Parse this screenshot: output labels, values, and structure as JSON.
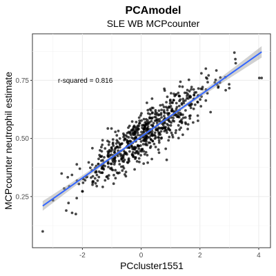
{
  "chart_data": {
    "type": "scatter",
    "title": "PCAmodel",
    "subtitle": "SLE WB MCPcounter",
    "xlabel": "PCcluster1551",
    "ylabel": "MCPcounter neutrophil estimate",
    "xlim": [
      -3.7,
      4.4
    ],
    "ylim": [
      0.03,
      0.95
    ],
    "x_ticks": [
      -2,
      0,
      2,
      4
    ],
    "x_tick_labels": [
      "-2",
      "0",
      "2",
      "4"
    ],
    "y_ticks": [
      0.25,
      0.5,
      0.75
    ],
    "y_tick_labels": [
      "0.25",
      "0.50",
      "0.75"
    ],
    "grid": true,
    "annotation": {
      "text": "r-squared = 0.816",
      "x": -1.9,
      "y": 0.75
    },
    "regression": {
      "slope": 0.0889,
      "intercept": 0.5077,
      "x_range": [
        -3.35,
        4.1
      ]
    },
    "point_count": 700,
    "highlight_points": [
      {
        "x": -3.35,
        "y": 0.1
      },
      {
        "x": 4.1,
        "y": 0.76
      },
      {
        "x": 4.02,
        "y": 0.76
      },
      {
        "x": -2.55,
        "y": 0.19
      },
      {
        "x": -2.35,
        "y": 0.18
      },
      {
        "x": 1.2,
        "y": 0.69
      },
      {
        "x": 2.2,
        "y": 0.8
      },
      {
        "x": 2.05,
        "y": 0.78
      },
      {
        "x": -1.65,
        "y": 0.31
      }
    ]
  }
}
